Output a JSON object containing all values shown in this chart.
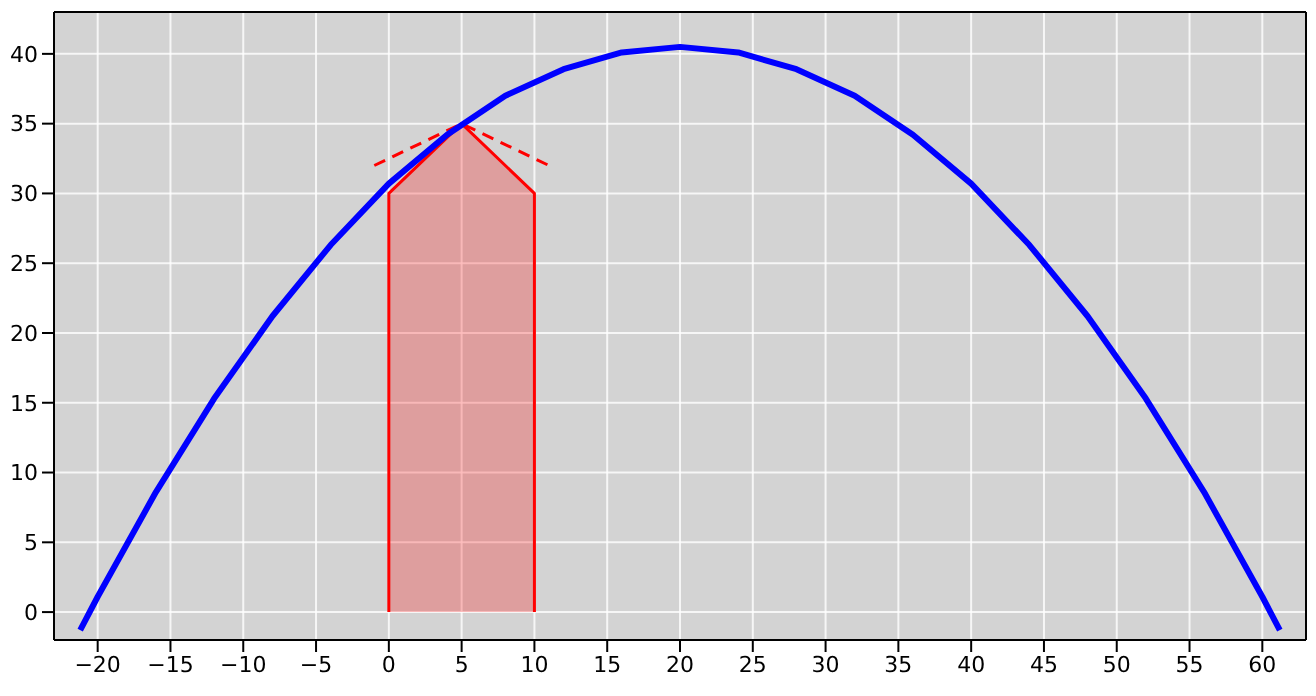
{
  "chart_data": {
    "type": "line",
    "xlim": [
      -23,
      63
    ],
    "ylim": [
      -2,
      43
    ],
    "xticks": [
      -20,
      -15,
      -10,
      -5,
      0,
      5,
      10,
      15,
      20,
      25,
      30,
      35,
      40,
      45,
      50,
      55,
      60
    ],
    "yticks": [
      0,
      5,
      10,
      15,
      20,
      25,
      30,
      35,
      40
    ],
    "grid": true,
    "marker": "none",
    "series": [
      {
        "type": "area",
        "color": "#ff0000",
        "x": [
          0,
          0,
          5,
          10,
          10
        ],
        "values": [
          0,
          30,
          35,
          30,
          0
        ]
      },
      {
        "type": "line",
        "line_style": "dashed",
        "color": "#ff0000",
        "x": [
          -1,
          5,
          11
        ],
        "values": [
          32,
          35,
          32
        ]
      },
      {
        "line_style": "solid",
        "color": "#0000ff",
        "x": [
          -21.2,
          -20,
          -16,
          -12,
          -8,
          -4,
          0,
          4,
          8,
          12,
          16,
          20,
          24,
          28,
          32,
          36,
          40,
          44,
          48,
          52,
          56,
          60,
          61.2
        ],
        "values": [
          -1.3,
          1.1,
          8.6,
          15.3,
          21.2,
          26.3,
          30.7,
          34.2,
          37.0,
          38.9,
          40.1,
          40.5,
          40.1,
          38.9,
          37.0,
          34.2,
          30.7,
          26.3,
          21.2,
          15.3,
          8.6,
          1.1,
          -1.3
        ]
      }
    ]
  }
}
